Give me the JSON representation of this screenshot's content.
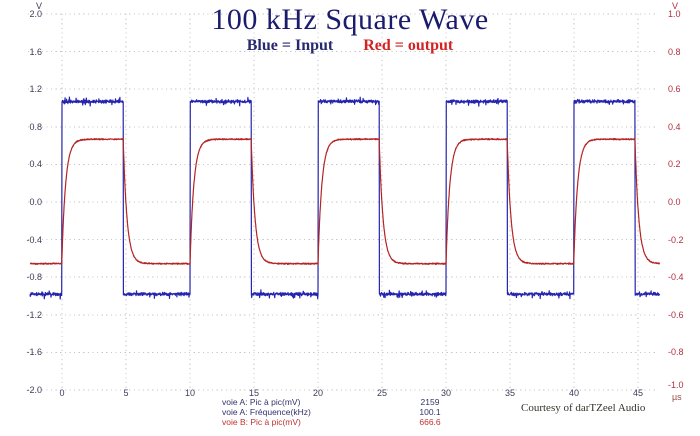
{
  "title": {
    "text": "100 kHz Square Wave",
    "color": "#1b1b6e"
  },
  "legend": {
    "input": {
      "text": "Blue = Input",
      "color": "#28286e"
    },
    "output": {
      "text": "Red = output",
      "color": "#d42222"
    }
  },
  "axes": {
    "left": {
      "unit": "V",
      "color": "#3c3c5a",
      "ticks": [
        "2.0",
        "1.6",
        "1.2",
        "0.8",
        "0.4",
        "0.0",
        "-0.4",
        "-0.8",
        "-1.2",
        "-1.6",
        "-2.0"
      ]
    },
    "right": {
      "unit": "V",
      "color": "#b03040",
      "ticks": [
        "1.0",
        "0.8",
        "0.6",
        "0.4",
        "0.2",
        "0.0",
        "-0.2",
        "-0.4",
        "-0.6",
        "-0.8",
        "-1.0"
      ]
    },
    "x": {
      "unit": "µs",
      "color": "#3c3c5a",
      "unit_color": "#9a4a4a",
      "ticks": [
        "0",
        "5",
        "10",
        "15",
        "20",
        "25",
        "30",
        "35",
        "40",
        "45"
      ]
    }
  },
  "readouts": {
    "rows": [
      {
        "label": "voie A: Pic à pic(mV)",
        "value": "2159",
        "color": "#32326a"
      },
      {
        "label": "voie A: Fréquence(kHz)",
        "value": "100.1",
        "color": "#32326a"
      },
      {
        "label": "voie B: Pic à pic(mV)",
        "value": "666.6",
        "color": "#c03030"
      }
    ]
  },
  "courtesy": {
    "text": "Courtesy of darTZeel Audio",
    "color": "#35322c"
  },
  "chart_data": {
    "type": "line",
    "title": "100 kHz Square Wave",
    "x_unit": "µs",
    "x_range": [
      -2.5,
      46.7
    ],
    "x_grid_step_us": 5,
    "grid": "dotted",
    "grid_color": "#c6c6c6",
    "left_axis": {
      "unit": "V",
      "min": -2.0,
      "max": 2.0,
      "tick_step": 0.4,
      "series": "input"
    },
    "right_axis": {
      "unit": "V",
      "min": -1.0,
      "max": 1.0,
      "tick_step": 0.2,
      "series": "output"
    },
    "series": [
      {
        "name": "input",
        "label": "Blue = Input",
        "color": "#2424ae",
        "axis": "left",
        "waveform": "square",
        "frequency_kHz": 100.1,
        "period_us": 10,
        "rise_at_us": [
          0,
          10,
          20,
          30,
          40
        ],
        "fall_at_us": [
          4.78,
          14.78,
          24.78,
          34.78,
          44.78
        ],
        "high_V": 1.07,
        "low_V": -0.98,
        "peak_to_peak_mV": 2159,
        "noise_Vpp": 0.04
      },
      {
        "name": "output",
        "label": "Red = output",
        "color": "#b42424",
        "axis": "right",
        "waveform": "square_lowpass",
        "frequency_kHz": 100.1,
        "period_us": 10,
        "high_V": 0.334,
        "low_V": -0.328,
        "time_constant_us": 0.3,
        "peak_to_peak_mV": 666.6,
        "noise_Vpp": 0.008
      }
    ]
  }
}
